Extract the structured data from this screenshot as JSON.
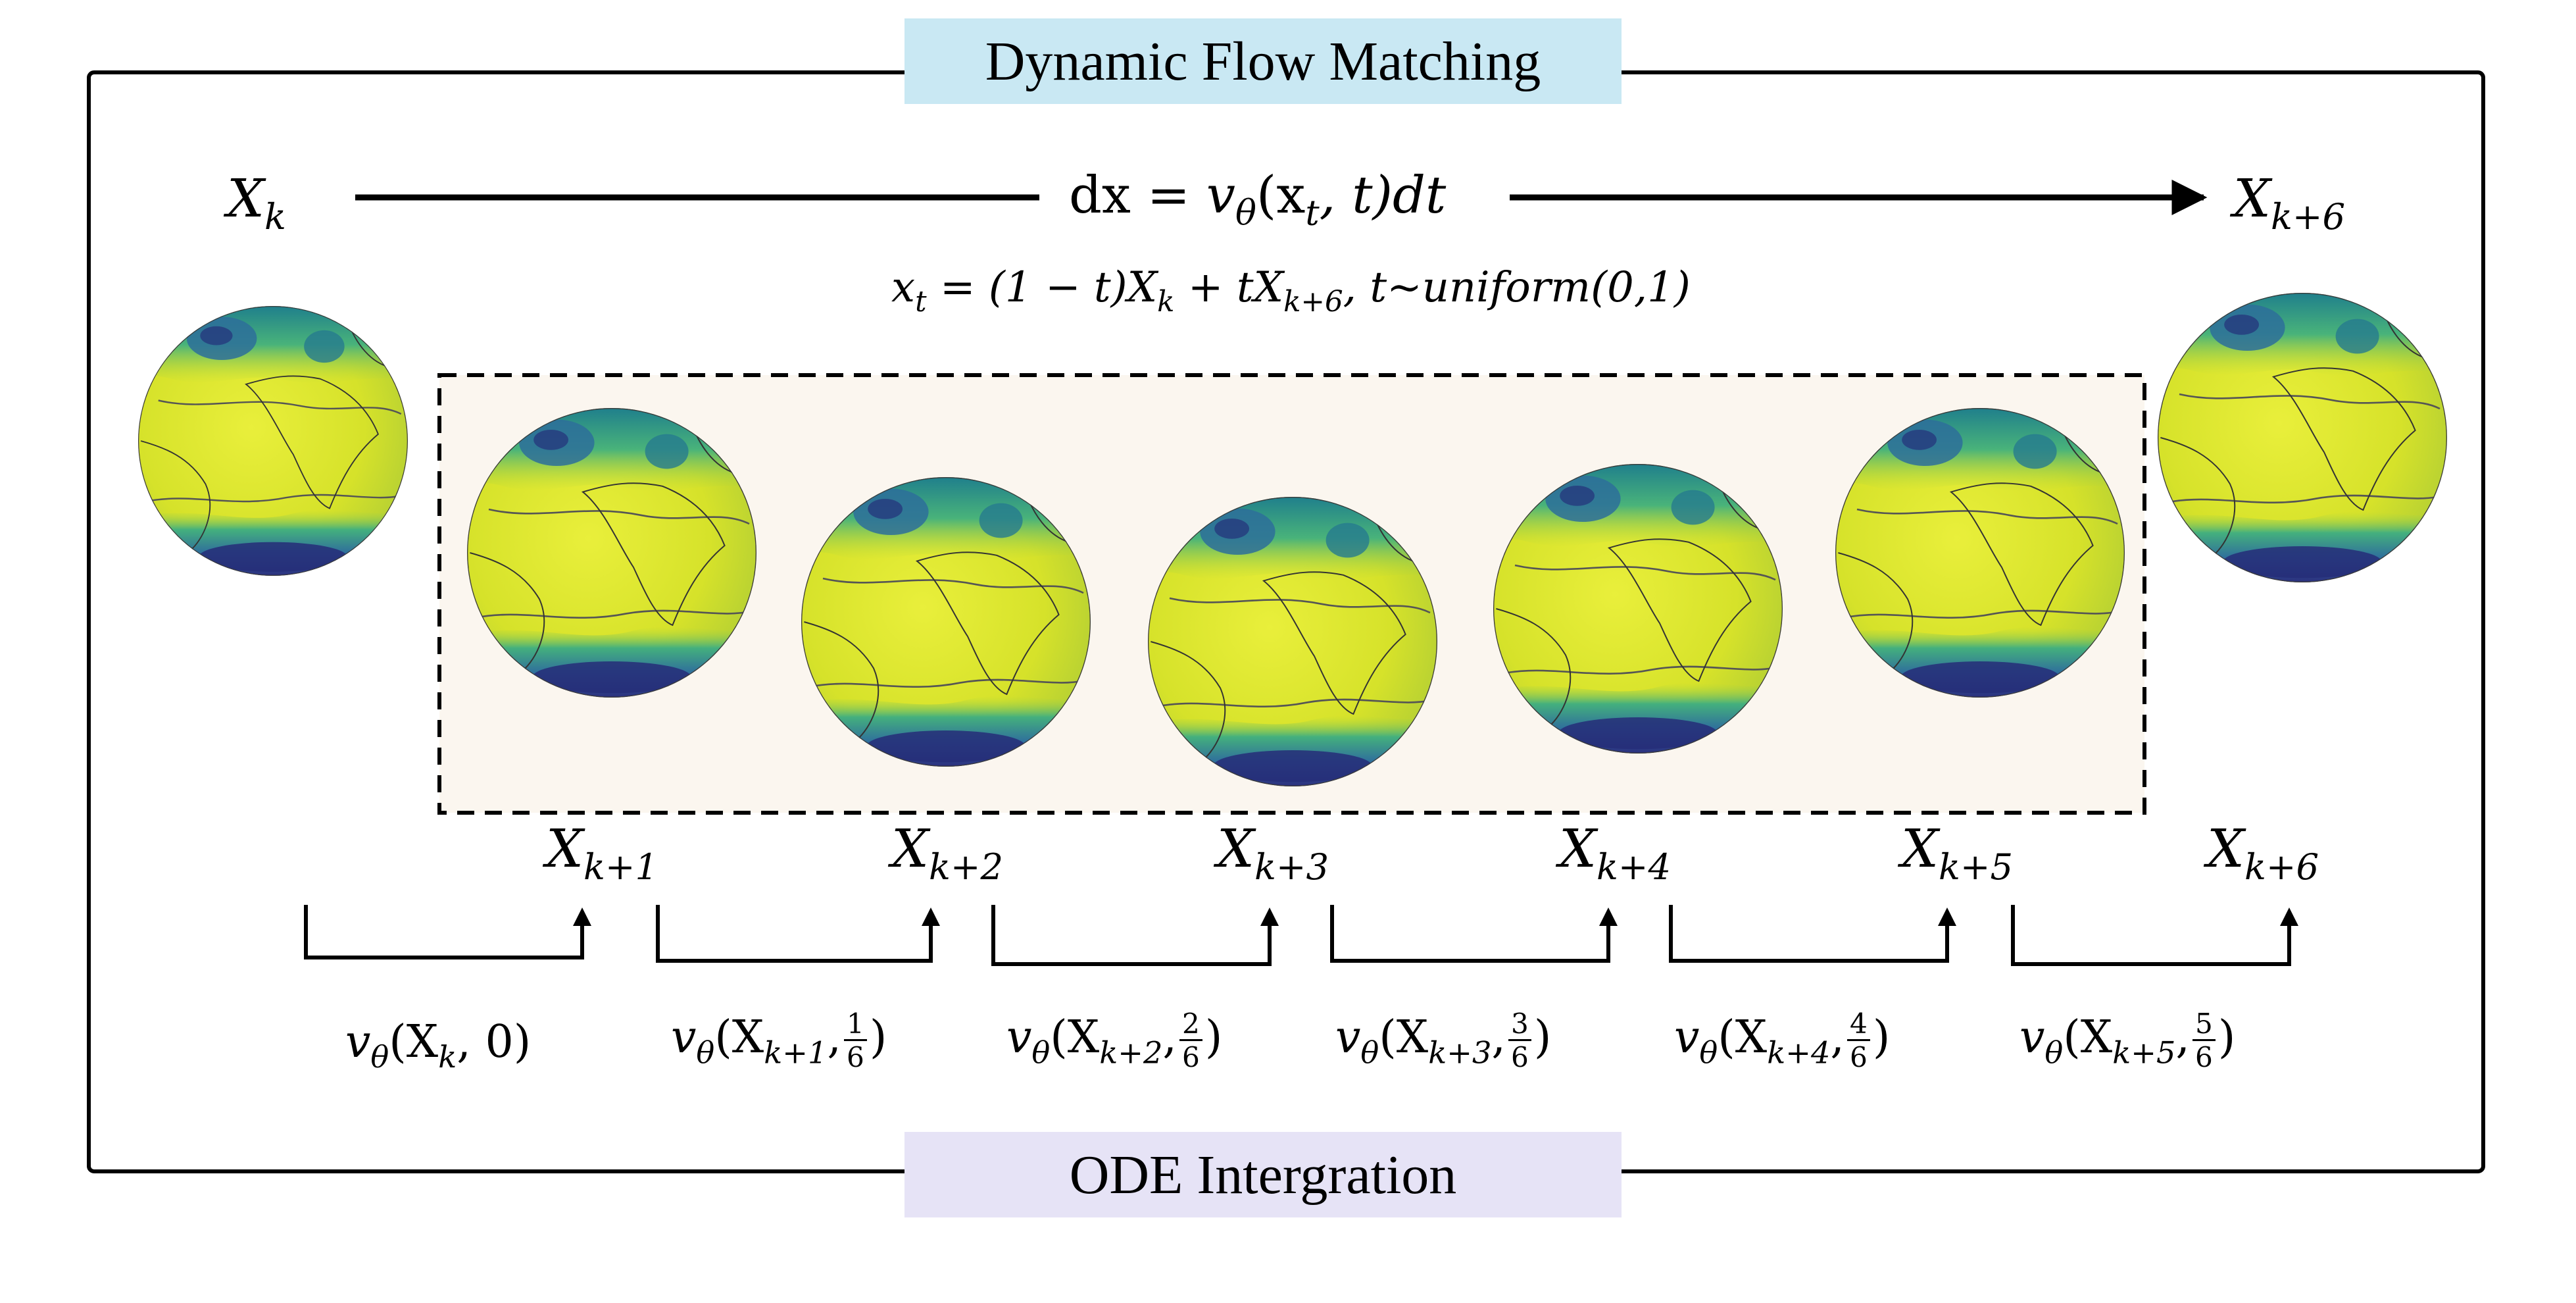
{
  "frame": {
    "top_title": "Dynamic Flow Matching",
    "bottom_title": "ODE  Intergration"
  },
  "equations": {
    "ode": {
      "lhs": "dx = ",
      "v": "v",
      "theta": "θ",
      "args": "(x",
      "sub_t": "t",
      "rest": ", t)dt"
    },
    "interp": {
      "pre": "x",
      "sub_t": "t",
      "mid": " = (1 − t)X",
      "sub_k": "k",
      "plus": " + tX",
      "sub_k6": "k+6",
      "tail": ", t~uniform(0,1)"
    }
  },
  "states": {
    "start": {
      "base": "X",
      "sub": "k"
    },
    "end": {
      "base": "X",
      "sub": "k+6"
    }
  },
  "steps": [
    {
      "base": "X",
      "sub": "k+1"
    },
    {
      "base": "X",
      "sub": "k+2"
    },
    {
      "base": "X",
      "sub": "k+3"
    },
    {
      "base": "X",
      "sub": "k+4"
    },
    {
      "base": "X",
      "sub": "k+5"
    },
    {
      "base": "X",
      "sub": "k+6"
    }
  ],
  "velocities": [
    {
      "v": "v",
      "theta": "θ",
      "open": "(X",
      "sub": "k",
      "close": ", 0)",
      "frac": null
    },
    {
      "v": "v",
      "theta": "θ",
      "open": "(X",
      "sub": "k+1",
      "close": ")",
      "frac": {
        "num": "1",
        "den": "6"
      }
    },
    {
      "v": "v",
      "theta": "θ",
      "open": "(X",
      "sub": "k+2",
      "close": ")",
      "frac": {
        "num": "2",
        "den": "6"
      }
    },
    {
      "v": "v",
      "theta": "θ",
      "open": "(X",
      "sub": "k+3",
      "close": ")",
      "frac": {
        "num": "3",
        "den": "6"
      }
    },
    {
      "v": "v",
      "theta": "θ",
      "open": "(X",
      "sub": "k+4",
      "close": ")",
      "frac": {
        "num": "4",
        "den": "6"
      }
    },
    {
      "v": "v",
      "theta": "θ",
      "open": "(X",
      "sub": "k+5",
      "close": ")",
      "frac": {
        "num": "5",
        "den": "6"
      }
    }
  ],
  "colors": {
    "frame": "#000000",
    "dashed_box_fill": "#fbf6ef",
    "top_title_bg": "#c9e8f3",
    "bottom_title_bg": "#e6e3f6",
    "globe_base": "#d8e428",
    "globe_mid": "#9fd13a",
    "globe_teal": "#2a9d8f",
    "globe_dark": "#2a3f86"
  },
  "globe_count": 7
}
